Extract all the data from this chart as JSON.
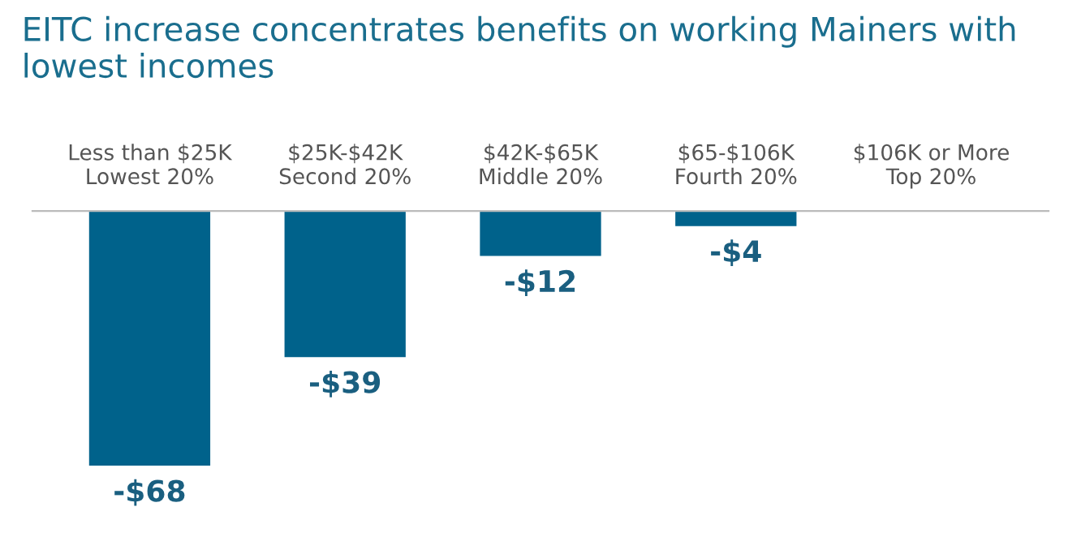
{
  "chart_data": {
    "type": "bar",
    "title": "EITC increase concentrates benefits on working Mainers with lowest incomes",
    "categories": [
      "Less than $25K\nLowest 20%",
      "$25K-$42K\nSecond 20%",
      "$42K-$65K\nMiddle 20%",
      "$65-$106K\nFourth 20%",
      "$106K or More\nTop 20%"
    ],
    "values": [
      -68,
      -39,
      -12,
      -4,
      null
    ],
    "value_labels": [
      "-$68",
      "-$39",
      "-$12",
      "-$4",
      null
    ],
    "color": "#00628b",
    "grid": false,
    "legend": false
  }
}
